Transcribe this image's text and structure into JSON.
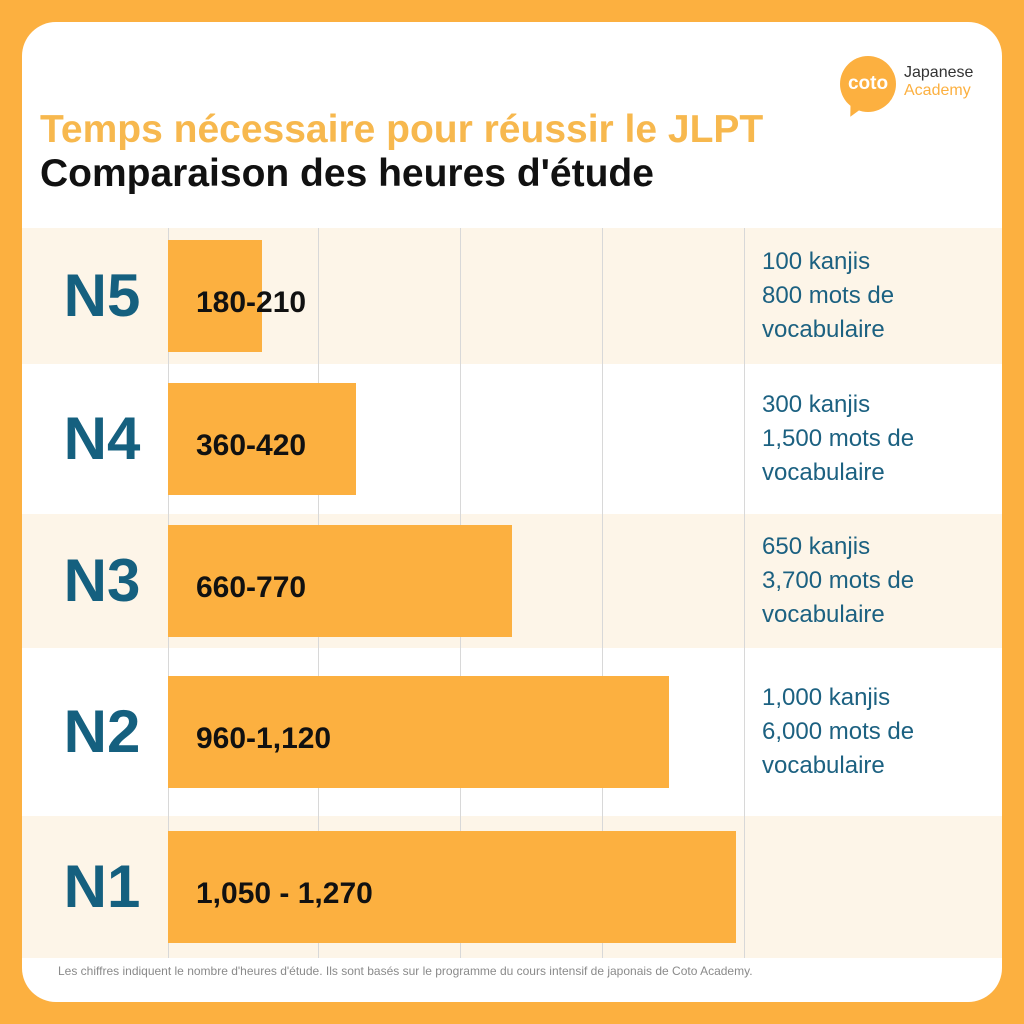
{
  "logo": {
    "badge": "coto",
    "line1": "Japanese",
    "line2": "Academy"
  },
  "title": "Temps nécessaire pour réussir le JLPT",
  "subtitle": "Comparaison des heures d'étude",
  "footnote": "Les chiffres indiquent le nombre d'heures d'étude. Ils sont basés sur le programme du cours intensif de japonais de Coto Academy.",
  "colors": {
    "accent": "#fcb040",
    "level_text": "#15607f",
    "note_text": "#1c6181",
    "band": "#fdf5e8"
  },
  "chart_data": {
    "type": "bar",
    "orientation": "horizontal",
    "categories": [
      "N5",
      "N4",
      "N3",
      "N2",
      "N1"
    ],
    "values": [
      210,
      420,
      770,
      1120,
      1270
    ],
    "value_labels": [
      "180-210",
      "360-420",
      "660-770",
      "960-1,120",
      "1,050 - 1,270"
    ],
    "xlim": [
      0,
      1270
    ],
    "grid": true,
    "notes": [
      [
        "100 kanjis",
        "800 mots de",
        "vocabulaire"
      ],
      [
        "300 kanjis",
        "1,500 mots de",
        "vocabulaire"
      ],
      [
        "650 kanjis",
        "3,700 mots de",
        "vocabulaire"
      ],
      [
        "1,000 kanjis",
        "6,000 mots de",
        "vocabulaire"
      ],
      []
    ]
  }
}
